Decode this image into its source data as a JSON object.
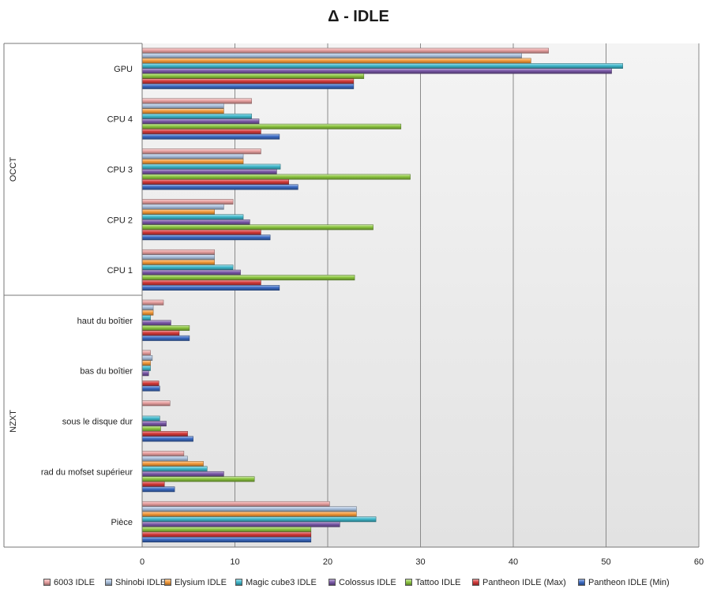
{
  "chart_data": {
    "type": "bar",
    "orientation": "horizontal",
    "title": "Δ - IDLE",
    "xlabel": "",
    "ylabel": "",
    "xlim": [
      0,
      60
    ],
    "x_ticks": [
      0,
      10,
      20,
      30,
      40,
      50,
      60
    ],
    "grid": true,
    "legend_position": "bottom",
    "groups": [
      {
        "name": "OCCT",
        "categories": [
          "GPU",
          "CPU 4",
          "CPU 3",
          "CPU 2",
          "CPU 1"
        ]
      },
      {
        "name": "NZXT",
        "categories": [
          "haut du boîtier",
          "bas du boîtier",
          "sous le disque dur",
          "rad du mofset supérieur",
          "Pièce"
        ]
      }
    ],
    "categories": [
      "GPU",
      "CPU 4",
      "CPU 3",
      "CPU 2",
      "CPU 1",
      "haut du boîtier",
      "bas du boîtier",
      "sous le disque dur",
      "rad du mofset supérieur",
      "Pièce"
    ],
    "series": [
      {
        "name": "6003 IDLE",
        "color": "#e8a0a0",
        "values": [
          43.8,
          11.8,
          12.8,
          9.8,
          7.8,
          2.3,
          0.9,
          3.0,
          4.5,
          20.2
        ]
      },
      {
        "name": "Shinobi IDLE",
        "color": "#a8bfdc",
        "values": [
          40.9,
          8.8,
          10.9,
          8.8,
          7.8,
          1.2,
          1.1,
          0,
          4.9,
          23.1
        ]
      },
      {
        "name": "Elysium IDLE",
        "color": "#f59a3a",
        "values": [
          41.9,
          8.8,
          10.9,
          7.8,
          7.8,
          1.2,
          0.9,
          0,
          6.6,
          23.1
        ]
      },
      {
        "name": "Magic cube3 IDLE",
        "color": "#3fb8cc",
        "values": [
          51.8,
          11.8,
          14.9,
          10.9,
          9.8,
          0.9,
          0.9,
          1.9,
          7.0,
          25.2
        ]
      },
      {
        "name": "Colossus IDLE",
        "color": "#7a58a8",
        "values": [
          50.6,
          12.6,
          14.5,
          11.6,
          10.6,
          3.1,
          0.7,
          2.6,
          8.8,
          21.3
        ]
      },
      {
        "name": "Tattoo IDLE",
        "color": "#8cc63f",
        "values": [
          23.9,
          27.9,
          28.9,
          24.9,
          22.9,
          5.1,
          0,
          2.0,
          12.1,
          18.2
        ]
      },
      {
        "name": "Pantheon IDLE (Max)",
        "color": "#d43a3a",
        "values": [
          22.8,
          12.8,
          15.8,
          12.8,
          12.8,
          4.0,
          1.8,
          4.9,
          2.4,
          18.2
        ]
      },
      {
        "name": "Pantheon IDLE (Min)",
        "color": "#3b6bc4",
        "values": [
          22.8,
          14.8,
          16.8,
          13.8,
          14.8,
          5.1,
          1.9,
          5.5,
          3.5,
          18.2
        ]
      }
    ]
  }
}
